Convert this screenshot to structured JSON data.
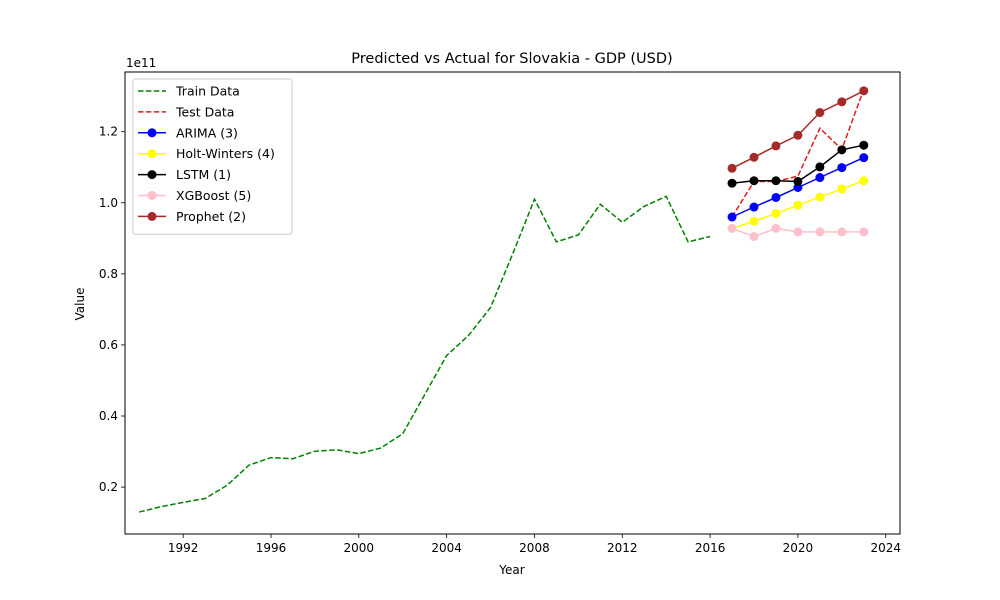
{
  "chart_data": {
    "type": "line",
    "title": "Predicted vs Actual for Slovakia - GDP (USD)",
    "xlabel": "Year",
    "ylabel": "Value",
    "y_offset_label": "1e11",
    "xlim": [
      1989.35,
      2024.65
    ],
    "ylim": [
      0.068,
      1.368
    ],
    "y_scale_exponent": 11,
    "x_ticks": [
      1992,
      1996,
      2000,
      2004,
      2008,
      2012,
      2016,
      2020,
      2024
    ],
    "x_tick_labels": [
      "1992",
      "1996",
      "2000",
      "2004",
      "2008",
      "2012",
      "2016",
      "2020",
      "2024"
    ],
    "y_ticks": [
      0.2,
      0.4,
      0.6,
      0.8,
      1.0,
      1.2
    ],
    "y_tick_labels": [
      "0.2",
      "0.4",
      "0.6",
      "0.8",
      "1.0",
      "1.2"
    ],
    "legend_position": "top-left",
    "series": [
      {
        "name": "Train Data",
        "color": "#008000",
        "style": "dashed",
        "marker": false,
        "x": [
          1990,
          1991,
          1992,
          1993,
          1994,
          1995,
          1996,
          1997,
          1998,
          1999,
          2000,
          2001,
          2002,
          2003,
          2004,
          2005,
          2006,
          2007,
          2008,
          2009,
          2010,
          2011,
          2012,
          2013,
          2014,
          2015,
          2016
        ],
        "y": [
          0.13,
          0.145,
          0.157,
          0.168,
          0.205,
          0.262,
          0.283,
          0.28,
          0.301,
          0.305,
          0.294,
          0.31,
          0.35,
          0.46,
          0.57,
          0.627,
          0.705,
          0.855,
          1.01,
          0.89,
          0.91,
          0.996,
          0.945,
          0.99,
          1.018,
          0.89,
          0.905
        ]
      },
      {
        "name": "Test Data",
        "color": "#e41a1c",
        "style": "dashed",
        "marker": false,
        "x": [
          2017,
          2018,
          2019,
          2020,
          2021,
          2022,
          2023
        ],
        "y": [
          0.96,
          1.06,
          1.06,
          1.075,
          1.21,
          1.15,
          1.32
        ]
      },
      {
        "name": "ARIMA (3)",
        "color": "#0000ff",
        "style": "solid",
        "marker": true,
        "x": [
          2017,
          2018,
          2019,
          2020,
          2021,
          2022,
          2023
        ],
        "y": [
          0.96,
          0.988,
          1.015,
          1.043,
          1.071,
          1.099,
          1.127
        ]
      },
      {
        "name": "Holt-Winters (4)",
        "color": "#ffff00",
        "style": "solid",
        "marker": true,
        "x": [
          2017,
          2018,
          2019,
          2020,
          2021,
          2022,
          2023
        ],
        "y": [
          0.928,
          0.948,
          0.97,
          0.993,
          1.016,
          1.039,
          1.062
        ]
      },
      {
        "name": "LSTM (1)",
        "color": "#000000",
        "style": "solid",
        "marker": true,
        "x": [
          2017,
          2018,
          2019,
          2020,
          2021,
          2022,
          2023
        ],
        "y": [
          1.055,
          1.062,
          1.062,
          1.06,
          1.101,
          1.149,
          1.162
        ]
      },
      {
        "name": "XGBoost (5)",
        "color": "#ffc0cb",
        "style": "solid",
        "marker": true,
        "x": [
          2017,
          2018,
          2019,
          2020,
          2021,
          2022,
          2023
        ],
        "y": [
          0.928,
          0.905,
          0.928,
          0.918,
          0.918,
          0.918,
          0.918
        ]
      },
      {
        "name": "Prophet (2)",
        "color": "#a52a2a",
        "style": "solid",
        "marker": true,
        "x": [
          2017,
          2018,
          2019,
          2020,
          2021,
          2022,
          2023
        ],
        "y": [
          1.097,
          1.128,
          1.16,
          1.19,
          1.254,
          1.284,
          1.315
        ]
      }
    ]
  }
}
